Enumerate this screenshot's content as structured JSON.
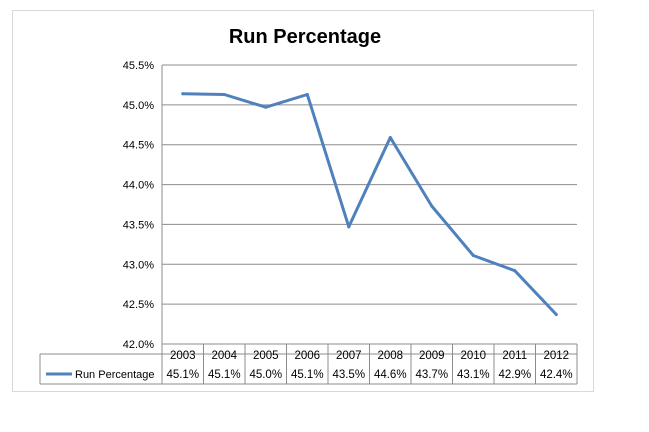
{
  "chart_data": {
    "type": "line",
    "title": "Run Percentage",
    "categories": [
      "2003",
      "2004",
      "2005",
      "2006",
      "2007",
      "2008",
      "2009",
      "2010",
      "2011",
      "2012"
    ],
    "series": [
      {
        "name": "Run Percentage",
        "values": [
          45.14,
          45.13,
          44.97,
          45.13,
          43.47,
          44.59,
          43.73,
          43.11,
          42.92,
          42.37
        ],
        "labels": [
          "45.1%",
          "45.1%",
          "45.0%",
          "45.1%",
          "43.5%",
          "44.6%",
          "43.7%",
          "43.1%",
          "42.9%",
          "42.4%"
        ],
        "color": "#4f81bd"
      }
    ],
    "yticks": [
      "42.0%",
      "42.5%",
      "43.0%",
      "43.5%",
      "44.0%",
      "44.5%",
      "45.0%",
      "45.5%"
    ],
    "ylim": [
      42.0,
      45.5
    ],
    "grid": true,
    "legend": "data-table"
  }
}
